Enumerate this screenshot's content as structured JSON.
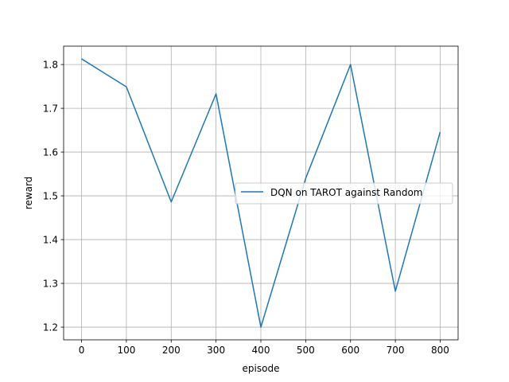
{
  "chart_data": {
    "type": "line",
    "title": "",
    "xlabel": "episode",
    "ylabel": "reward",
    "xlim": [
      -40,
      840
    ],
    "ylim": [
      1.171,
      1.842
    ],
    "xticks": [
      0,
      100,
      200,
      300,
      400,
      500,
      600,
      700,
      800
    ],
    "xtick_labels": [
      "0",
      "100",
      "200",
      "300",
      "400",
      "500",
      "600",
      "700",
      "800"
    ],
    "yticks": [
      1.2,
      1.3,
      1.4,
      1.5,
      1.6,
      1.7,
      1.8
    ],
    "ytick_labels": [
      "1.2",
      "1.3",
      "1.4",
      "1.5",
      "1.6",
      "1.7",
      "1.8"
    ],
    "grid": true,
    "legend_position": "center-right",
    "series": [
      {
        "name": "DQN on TAROT against Random",
        "color": "#1f77b4",
        "x": [
          0,
          100,
          200,
          300,
          400,
          500,
          600,
          700,
          800
        ],
        "y": [
          1.813,
          1.749,
          1.486,
          1.733,
          1.2,
          1.54,
          1.8,
          1.282,
          1.646
        ]
      }
    ]
  }
}
